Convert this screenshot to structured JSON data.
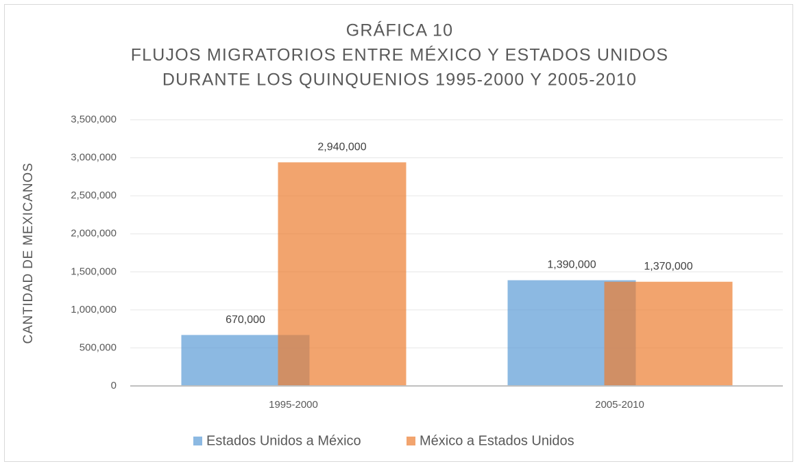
{
  "chart_data": {
    "type": "bar",
    "title": [
      "GRÁFICA 10",
      "FLUJOS MIGRATORIOS ENTRE MÉXICO Y ESTADOS UNIDOS",
      "DURANTE LOS QUINQUENIOS 1995-2000 Y 2005-2010"
    ],
    "y_axis_label": "CANTIDAD DE MEXICANOS",
    "categories": [
      "1995-2000",
      "2005-2010"
    ],
    "series": [
      {
        "name": "Estados Unidos a México",
        "color": "#5b9bd5",
        "values": [
          670000,
          1390000
        ],
        "value_labels": [
          "670,000",
          "1,390,000"
        ]
      },
      {
        "name": "México a Estados Unidos",
        "color": "#ed7d31",
        "values": [
          2940000,
          1370000
        ],
        "value_labels": [
          "2,940,000",
          "1,370,000"
        ]
      }
    ],
    "ylim": [
      0,
      3500000
    ],
    "yticks": [
      0,
      {
        "value": 500000,
        "label": "500,000"
      },
      {
        "value": 1000000,
        "label": "1,000,000"
      },
      {
        "value": 1500000,
        "label": "1,500,000"
      },
      {
        "value": 2000000,
        "label": "2,000,000"
      },
      {
        "value": 2500000,
        "label": "2,500,000"
      },
      {
        "value": 3000000,
        "label": "3,000,000"
      },
      {
        "value": 3500000,
        "label": "3,500,000"
      }
    ],
    "grid": true,
    "legend": "bottom"
  }
}
